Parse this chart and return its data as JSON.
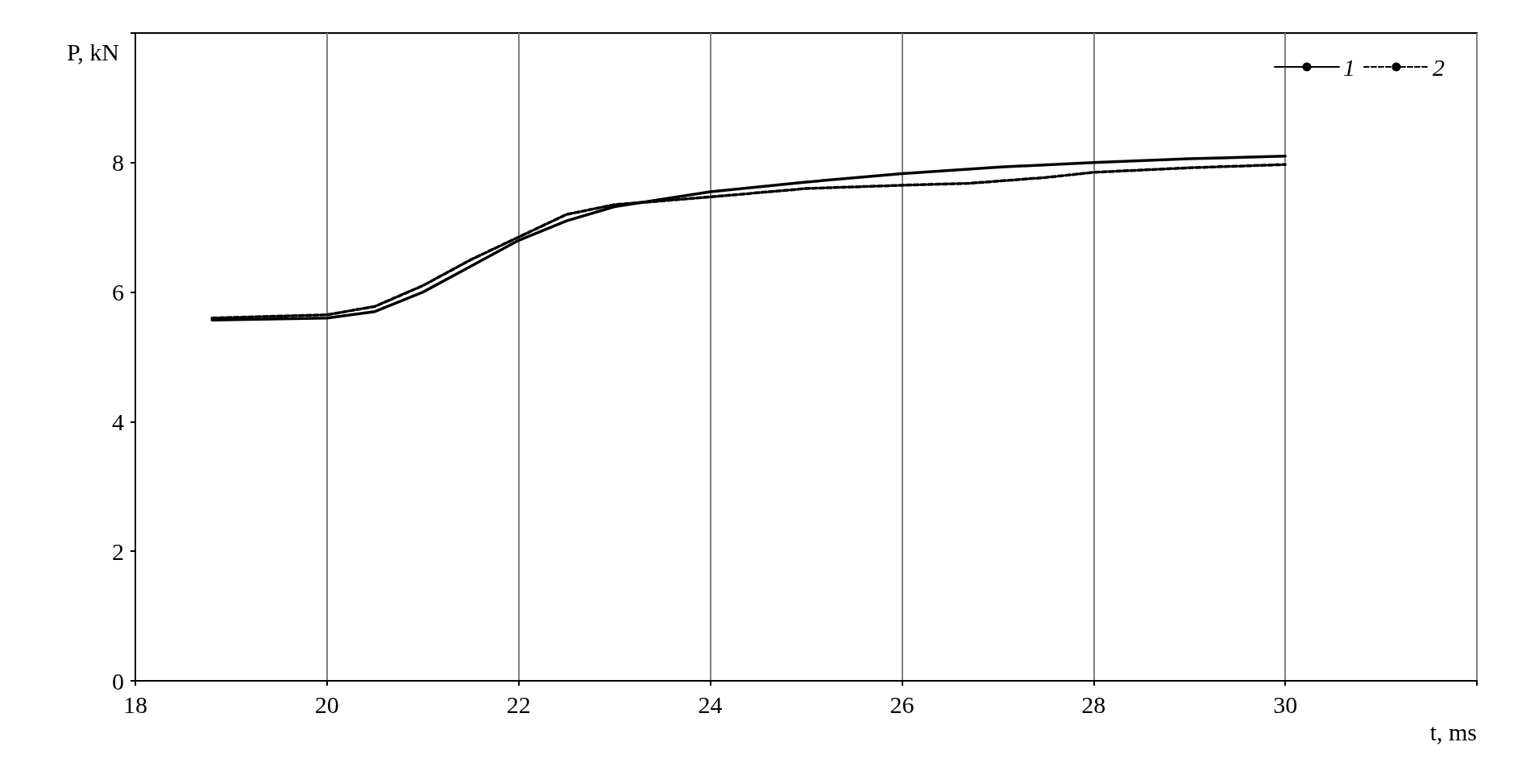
{
  "chart_data": {
    "type": "line",
    "xlabel": "t, ms",
    "ylabel": "P, kN",
    "xlim": [
      18,
      32
    ],
    "xticks": [
      18,
      20,
      22,
      24,
      26,
      28,
      30,
      {
        "value": 32,
        "label": null
      }
    ],
    "ylim": [
      0,
      10
    ],
    "yticks": [
      0,
      2,
      4,
      6,
      8,
      {
        "value": 10,
        "label": null
      }
    ],
    "grid": "x",
    "legend": "top right",
    "marker": "none",
    "series": [
      {
        "name": "1",
        "color": "#000000",
        "line_style": "solid",
        "x": [
          18.8,
          20,
          20.5,
          21,
          21.5,
          22,
          22.5,
          23,
          24,
          25,
          26,
          27,
          28,
          29,
          30
        ],
        "values": [
          5.57,
          5.6,
          5.7,
          6.0,
          6.4,
          6.8,
          7.1,
          7.32,
          7.55,
          7.7,
          7.83,
          7.93,
          8.0,
          8.06,
          8.1
        ]
      },
      {
        "name": "2",
        "color": "#000000",
        "line_style": "dashed",
        "x": [
          18.8,
          20,
          20.5,
          21,
          21.5,
          22,
          22.5,
          23,
          24,
          25,
          26,
          26.7,
          27.5,
          28,
          29,
          30
        ],
        "values": [
          5.6,
          5.65,
          5.78,
          6.1,
          6.5,
          6.85,
          7.2,
          7.35,
          7.47,
          7.6,
          7.65,
          7.68,
          7.77,
          7.85,
          7.92,
          7.97
        ]
      }
    ]
  }
}
